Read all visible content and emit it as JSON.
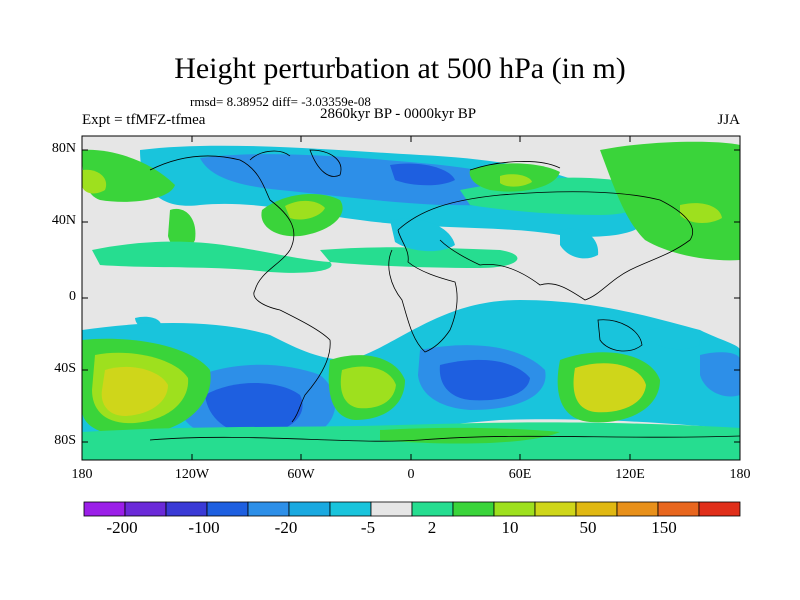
{
  "header": {
    "title": "Height perturbation at 500 hPa (in m)",
    "rmsd_line": "rmsd= 8.38952  diff= -3.03359e-08",
    "expt": "Expt = tfMFZ-tfmea",
    "period": "2860kyr BP - 0000kyr BP",
    "season": "JJA"
  },
  "axes": {
    "lat_labels": [
      "80N",
      "40N",
      "0",
      "40S",
      "80S"
    ],
    "lon_labels": [
      "180",
      "120W",
      "60W",
      "0",
      "60E",
      "120E",
      "180"
    ]
  },
  "colorbar": {
    "labels": [
      "-200",
      "-100",
      "-20",
      "-5",
      "2",
      "10",
      "50",
      "150"
    ],
    "colors": [
      "#9b1fe8",
      "#6b2ad8",
      "#3a3ad6",
      "#1e5fe0",
      "#2d8fe8",
      "#1aa9e0",
      "#19c4dc",
      "#e6e6e6",
      "#26dd90",
      "#3ad43a",
      "#9ee01e",
      "#cfd61a",
      "#e0b812",
      "#e8901a",
      "#e8661e",
      "#e02f1a"
    ]
  },
  "colors": {
    "neutral": "#e6e6e6",
    "light_blue": "#19c4dc",
    "mid_blue": "#2d8fe8",
    "blue": "#1e5fe0",
    "dark_blue": "#3a3ad6",
    "teal": "#26dd90",
    "green": "#3ad43a",
    "yellow_green": "#9ee01e",
    "yellow": "#cfd61a",
    "orange_yellow": "#e0b812"
  }
}
